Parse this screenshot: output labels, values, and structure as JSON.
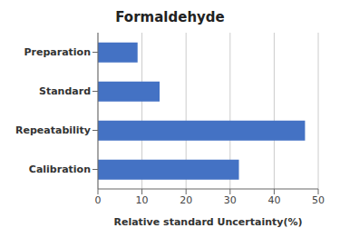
{
  "chart_data": {
    "type": "bar",
    "title": "Formaldehyde",
    "categories": [
      "Calibration",
      "Repeatability",
      "Standard",
      "Preparation"
    ],
    "values": [
      32,
      47,
      14,
      9
    ],
    "color": "#4472C4",
    "xlabel": "Relative standard Uncertainty(%)",
    "xlim": [
      0,
      50
    ],
    "xticks": [
      0,
      10,
      20,
      30,
      40,
      50
    ],
    "grid": true,
    "orientation": "horizontal"
  }
}
